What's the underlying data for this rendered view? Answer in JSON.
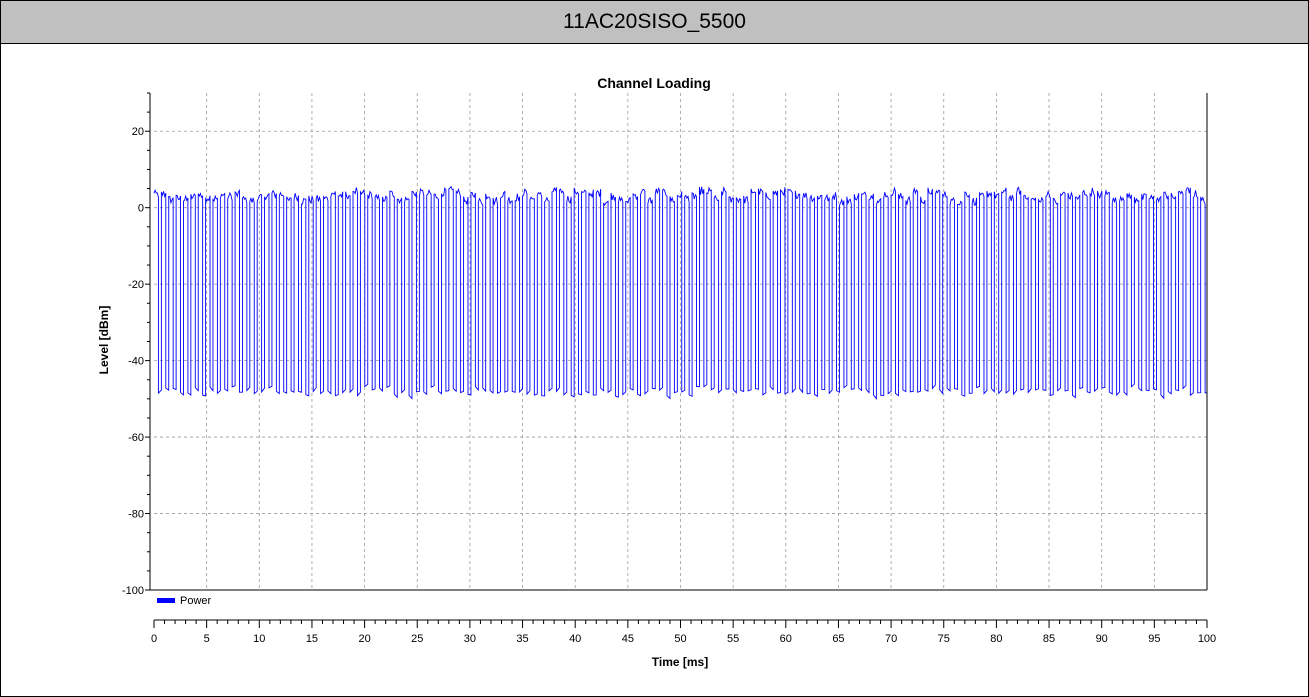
{
  "header": {
    "title": "11AC20SISO_5500"
  },
  "chart_data": {
    "type": "line",
    "title": "Channel Loading",
    "xlabel": "Time [ms]",
    "ylabel": "Level [dBm]",
    "xlim": [
      0,
      100
    ],
    "ylim": [
      -100,
      30
    ],
    "x_ticks": [
      0,
      5,
      10,
      15,
      20,
      25,
      30,
      35,
      40,
      45,
      50,
      55,
      60,
      65,
      70,
      75,
      80,
      85,
      90,
      95,
      100
    ],
    "y_ticks": [
      20,
      0,
      -20,
      -40,
      -60,
      -80,
      -100
    ],
    "grid": true,
    "legend": {
      "placement": "bottom-left",
      "entries": [
        "Power"
      ]
    },
    "series": [
      {
        "name": "Power",
        "color": "#0000ff",
        "pattern": "periodic bursts",
        "burst_period_ms": 0.7,
        "burst_duty": 0.6,
        "on_level_dbm": 3,
        "off_level_dbm": -48,
        "max_dbm": 6,
        "min_dbm": -51,
        "x_start": 0,
        "x_end": 100
      }
    ]
  }
}
